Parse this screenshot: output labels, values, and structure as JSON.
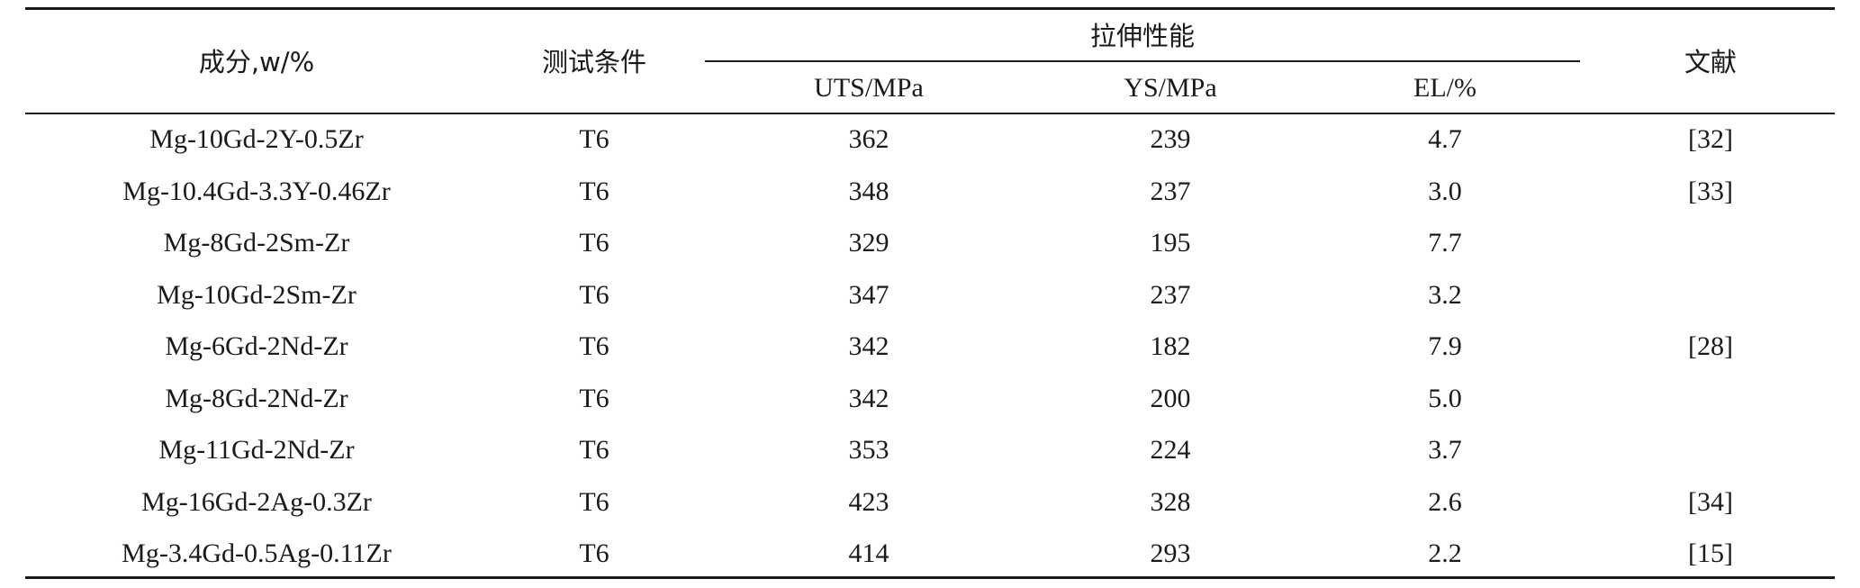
{
  "table": {
    "headers": {
      "composition": "成分,w/%",
      "condition": "测试条件",
      "tensile": "拉伸性能",
      "uts": "UTS/MPa",
      "ys": "YS/MPa",
      "el": "EL/%",
      "reference": "文献"
    },
    "rows": [
      {
        "composition": "Mg-10Gd-2Y-0.5Zr",
        "condition": "T6",
        "uts": "362",
        "ys": "239",
        "el": "4.7",
        "reference": "[32]"
      },
      {
        "composition": "Mg-10.4Gd-3.3Y-0.46Zr",
        "condition": "T6",
        "uts": "348",
        "ys": "237",
        "el": "3.0",
        "reference": "[33]"
      },
      {
        "composition": "Mg-8Gd-2Sm-Zr",
        "condition": "T6",
        "uts": "329",
        "ys": "195",
        "el": "7.7",
        "reference": ""
      },
      {
        "composition": "Mg-10Gd-2Sm-Zr",
        "condition": "T6",
        "uts": "347",
        "ys": "237",
        "el": "3.2",
        "reference": ""
      },
      {
        "composition": "Mg-6Gd-2Nd-Zr",
        "condition": "T6",
        "uts": "342",
        "ys": "182",
        "el": "7.9",
        "reference": "[28]"
      },
      {
        "composition": "Mg-8Gd-2Nd-Zr",
        "condition": "T6",
        "uts": "342",
        "ys": "200",
        "el": "5.0",
        "reference": ""
      },
      {
        "composition": "Mg-11Gd-2Nd-Zr",
        "condition": "T6",
        "uts": "353",
        "ys": "224",
        "el": "3.7",
        "reference": ""
      },
      {
        "composition": "Mg-16Gd-2Ag-0.3Zr",
        "condition": "T6",
        "uts": "423",
        "ys": "328",
        "el": "2.6",
        "reference": "[34]"
      },
      {
        "composition": "Mg-3.4Gd-0.5Ag-0.11Zr",
        "condition": "T6",
        "uts": "414",
        "ys": "293",
        "el": "2.2",
        "reference": "[15]"
      }
    ]
  }
}
